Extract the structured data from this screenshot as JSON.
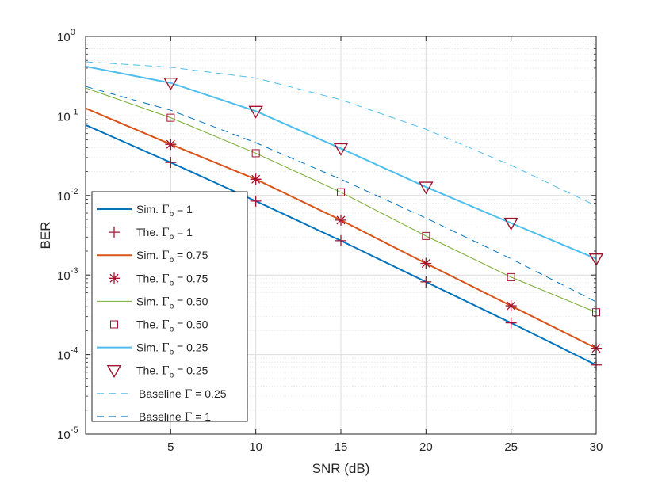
{
  "chart_data": {
    "type": "line",
    "xlabel": "SNR (dB)",
    "ylabel": "BER",
    "y_scale": "log",
    "xlim": [
      0,
      30
    ],
    "ylim": [
      1e-05,
      1
    ],
    "grid": true,
    "legend_position": "bottom-left",
    "xticks": [
      5,
      10,
      15,
      20,
      25,
      30
    ],
    "xtick_labels": [
      "5",
      "10",
      "15",
      "20",
      "25",
      "30"
    ],
    "yticks": [
      {
        "value": 1e-05,
        "base": "10",
        "exp": "-5"
      },
      {
        "value": 0.0001,
        "base": "10",
        "exp": "-4"
      },
      {
        "value": 0.001,
        "base": "10",
        "exp": "-3"
      },
      {
        "value": 0.01,
        "base": "10",
        "exp": "-2"
      },
      {
        "value": 0.1,
        "base": "10",
        "exp": "-1"
      },
      {
        "value": 1,
        "base": "10",
        "exp": "0"
      }
    ],
    "series": [
      {
        "id": "sim-gb-1",
        "pre": "Sim. ",
        "greek": "Γ",
        "sub": "b",
        "post": " = 1",
        "kind": "line",
        "color": "#0072BD",
        "width": 2,
        "dash": "",
        "x": [
          0,
          5,
          10,
          15,
          20,
          25,
          30
        ],
        "y": [
          0.077,
          0.026,
          0.0085,
          0.0027,
          0.00082,
          0.00025,
          7.4e-05
        ]
      },
      {
        "id": "the-gb-1",
        "pre": "The. ",
        "greek": "Γ",
        "sub": "b",
        "post": " = 1",
        "kind": "marker",
        "marker": "plus",
        "color": "#A2142F",
        "x": [
          5,
          10,
          15,
          20,
          25,
          30
        ],
        "y": [
          0.026,
          0.0085,
          0.0027,
          0.00082,
          0.00025,
          7.4e-05
        ]
      },
      {
        "id": "sim-gb-075",
        "pre": "Sim. ",
        "greek": "Γ",
        "sub": "b",
        "post": " = 0.75",
        "kind": "line",
        "color": "#D95319",
        "width": 2,
        "dash": "",
        "x": [
          0,
          5,
          10,
          15,
          20,
          25,
          30
        ],
        "y": [
          0.125,
          0.044,
          0.016,
          0.0049,
          0.0014,
          0.00041,
          0.00012
        ]
      },
      {
        "id": "the-gb-075",
        "pre": "The. ",
        "greek": "Γ",
        "sub": "b",
        "post": " = 0.75",
        "kind": "marker",
        "marker": "asterisk",
        "color": "#A2142F",
        "x": [
          5,
          10,
          15,
          20,
          25,
          30
        ],
        "y": [
          0.044,
          0.016,
          0.0049,
          0.0014,
          0.00041,
          0.00012
        ]
      },
      {
        "id": "sim-gb-050",
        "pre": "Sim. ",
        "greek": "Γ",
        "sub": "b",
        "post": " = 0.50",
        "kind": "line",
        "color": "#77AC30",
        "width": 1,
        "dash": "",
        "x": [
          0,
          5,
          10,
          15,
          20,
          25,
          30
        ],
        "y": [
          0.225,
          0.095,
          0.034,
          0.011,
          0.0031,
          0.00094,
          0.00034
        ]
      },
      {
        "id": "the-gb-050",
        "pre": "The. ",
        "greek": "Γ",
        "sub": "b",
        "post": " = 0.50",
        "kind": "marker",
        "marker": "square",
        "color": "#A2142F",
        "x": [
          5,
          10,
          15,
          20,
          25,
          30
        ],
        "y": [
          0.095,
          0.034,
          0.011,
          0.0031,
          0.00094,
          0.00034
        ]
      },
      {
        "id": "sim-gb-025",
        "pre": "Sim. ",
        "greek": "Γ",
        "sub": "b",
        "post": " = 0.25",
        "kind": "line",
        "color": "#4DBEEE",
        "width": 2,
        "dash": "",
        "x": [
          0,
          5,
          10,
          15,
          20,
          25,
          30
        ],
        "y": [
          0.42,
          0.26,
          0.115,
          0.039,
          0.0128,
          0.0045,
          0.0016
        ]
      },
      {
        "id": "the-gb-025",
        "pre": "The. ",
        "greek": "Γ",
        "sub": "b",
        "post": " = 0.25",
        "kind": "marker",
        "marker": "triangle-down",
        "color": "#A2142F",
        "x": [
          5,
          10,
          15,
          20,
          25,
          30
        ],
        "y": [
          0.26,
          0.115,
          0.039,
          0.0128,
          0.0045,
          0.0016
        ]
      },
      {
        "id": "baseline-025",
        "pre": "Baseline ",
        "greek": "Γ",
        "sub": "",
        "post": " = 0.25",
        "kind": "line",
        "color": "#4DBEEE",
        "width": 1,
        "dash": "9,6",
        "x": [
          0,
          5,
          10,
          15,
          20,
          25,
          30
        ],
        "y": [
          0.48,
          0.41,
          0.3,
          0.16,
          0.068,
          0.024,
          0.0074
        ]
      },
      {
        "id": "baseline-1",
        "pre": "Baseline ",
        "greek": "Γ",
        "sub": "",
        "post": " = 1",
        "kind": "line",
        "color": "#0072BD",
        "width": 1,
        "dash": "9,6",
        "x": [
          0,
          5,
          10,
          15,
          20,
          25,
          30
        ],
        "y": [
          0.235,
          0.118,
          0.046,
          0.016,
          0.0052,
          0.0016,
          0.00046
        ]
      }
    ]
  }
}
